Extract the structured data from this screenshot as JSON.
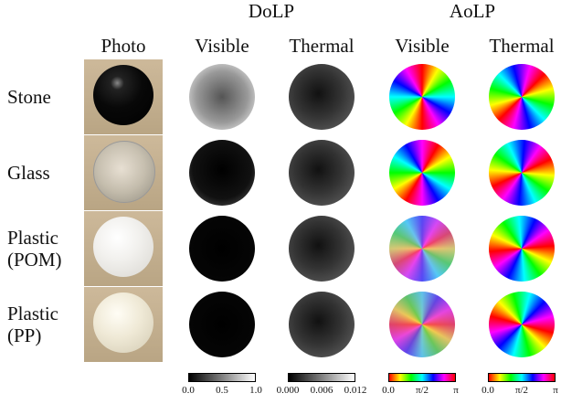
{
  "header": {
    "groups": [
      "DoLP",
      "AoLP"
    ],
    "columns": [
      "Photo",
      "Visible",
      "Thermal",
      "Visible",
      "Thermal"
    ]
  },
  "rows": [
    {
      "label": [
        "Stone"
      ]
    },
    {
      "label": [
        "Glass"
      ]
    },
    {
      "label": [
        "Plastic",
        "(POM)"
      ]
    },
    {
      "label": [
        "Plastic",
        "(PP)"
      ]
    }
  ],
  "colorbars": [
    {
      "ticks": [
        "0.0",
        "0.5",
        "1.0"
      ]
    },
    {
      "ticks": [
        "0.000",
        "0.006",
        "0.012"
      ]
    },
    {
      "ticks": [
        "0.0",
        "π/2",
        "π"
      ]
    },
    {
      "ticks": [
        "0.0",
        "π/2",
        "π"
      ]
    }
  ]
}
